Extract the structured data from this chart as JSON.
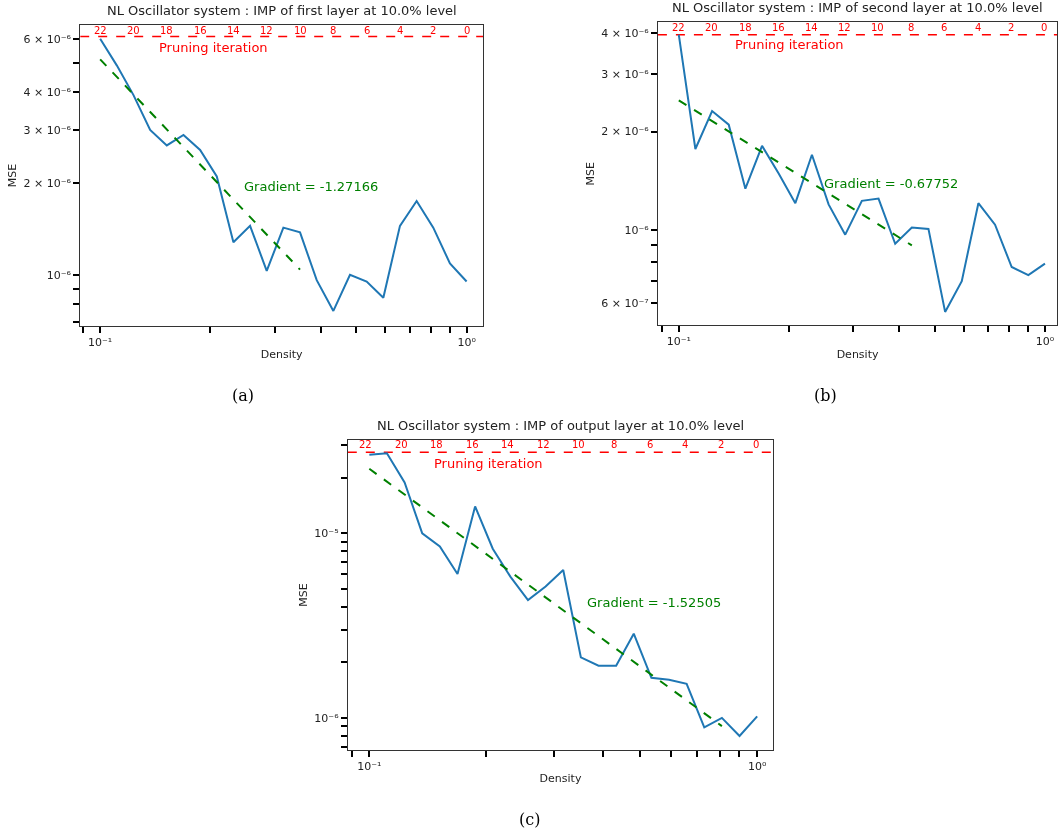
{
  "chart_data": [
    {
      "type": "line",
      "title": "NL Oscillator system : IMP of first layer at 10.0% level",
      "xlabel": "Density",
      "ylabel": "MSE",
      "x2label": "Pruning iteration",
      "log": "xy",
      "marker": "none",
      "x": [
        0.1,
        0.111,
        0.1233,
        0.1369,
        0.152,
        0.1688,
        0.1874,
        0.2081,
        0.231,
        0.2565,
        0.2848,
        0.3162,
        0.3511,
        0.3899,
        0.4329,
        0.4806,
        0.5337,
        0.5926,
        0.6579,
        0.7305,
        0.8111,
        0.9006,
        1.0
      ],
      "series": [
        {
          "color": "#1f77b4",
          "values": [
            6e-06,
            4.9e-06,
            3.91e-06,
            3e-06,
            2.67e-06,
            2.89e-06,
            2.58e-06,
            2.11e-06,
            1.28e-06,
            1.45e-06,
            1.03e-06,
            1.43e-06,
            1.38e-06,
            9.6e-07,
            7.6e-07,
            1e-06,
            9.5e-07,
            8.4e-07,
            1.45e-06,
            1.75e-06,
            1.43e-06,
            1.09e-06,
            9.5e-07
          ]
        },
        {
          "type": "line",
          "color": "#008000",
          "line_style": "dashed",
          "x": [
            0.1,
            0.3511
          ],
          "values": [
            5.13e-06,
            1.04e-06
          ]
        }
      ],
      "xlim": [
        0.0882,
        1.11
      ],
      "ylim": [
        6.78e-07,
        6.65e-06
      ],
      "xticks": [
        {
          "value": 0.09,
          "label": null
        },
        {
          "value": 0.1,
          "label": "10⁻¹"
        },
        {
          "value": 0.2,
          "label": null
        },
        {
          "value": 0.3,
          "label": null
        },
        {
          "value": 0.4,
          "label": null
        },
        {
          "value": 0.5,
          "label": null
        },
        {
          "value": 0.6,
          "label": null
        },
        {
          "value": 0.7,
          "label": null
        },
        {
          "value": 0.8,
          "label": null
        },
        {
          "value": 0.9,
          "label": null
        },
        {
          "value": 1,
          "label": "10⁰"
        }
      ],
      "yticks": [
        {
          "value": 7e-07,
          "label": null
        },
        {
          "value": 8e-07,
          "label": null
        },
        {
          "value": 9e-07,
          "label": null
        },
        {
          "value": 1e-06,
          "label": "10⁻⁶"
        },
        {
          "value": 2e-06,
          "label": "2 × 10⁻⁶"
        },
        {
          "value": 3e-06,
          "label": "3 × 10⁻⁶"
        },
        {
          "value": 4e-06,
          "label": "4 × 10⁻⁶"
        },
        {
          "value": 5e-06,
          "label": null
        },
        {
          "value": 6e-06,
          "label": "6 × 10⁻⁶"
        }
      ],
      "x2lim": [
        23.2,
        -1
      ],
      "x2ticks": [
        22,
        20,
        18,
        16,
        14,
        12,
        10,
        8,
        6,
        4,
        2,
        0
      ],
      "ref_lines": [
        {
          "axis": "y",
          "value": 6.1e-06,
          "color": "#ff0000",
          "line_style": "dashed"
        }
      ],
      "annotations": [
        "Gradient = -1.27166",
        "(a)"
      ]
    },
    {
      "type": "line",
      "title": "NL Oscillator system : IMP of second layer at 10.0% level",
      "xlabel": "Density",
      "ylabel": "MSE",
      "x2label": "Pruning iteration",
      "log": "xy",
      "marker": "none",
      "x": [
        0.1,
        0.111,
        0.1233,
        0.1369,
        0.152,
        0.1688,
        0.1874,
        0.2081,
        0.231,
        0.2565,
        0.2848,
        0.3162,
        0.3511,
        0.3899,
        0.4329,
        0.4806,
        0.5337,
        0.5926,
        0.6579,
        0.7305,
        0.8111,
        0.9006,
        1.0
      ],
      "series": [
        {
          "color": "#1f77b4",
          "values": [
            3.95e-06,
            1.77e-06,
            2.31e-06,
            2.1e-06,
            1.34e-06,
            1.81e-06,
            1.49e-06,
            1.21e-06,
            1.7e-06,
            1.2e-06,
            9.7e-07,
            1.23e-06,
            1.25e-06,
            9.1e-07,
            1.02e-06,
            1.01e-06,
            5.64e-07,
            7e-07,
            1.21e-06,
            1.04e-06,
            7.73e-07,
            7.3e-07,
            7.92e-07
          ]
        },
        {
          "type": "line",
          "color": "#008000",
          "line_style": "dashed",
          "x": [
            0.1,
            0.4329
          ],
          "values": [
            2.49e-06,
            9e-07
          ]
        }
      ],
      "xlim": [
        0.0877,
        1.08
      ],
      "ylim": [
        5.14e-07,
        4.31e-06
      ],
      "xticks": [
        {
          "value": 0.09,
          "label": null
        },
        {
          "value": 0.1,
          "label": "10⁻¹"
        },
        {
          "value": 0.2,
          "label": null
        },
        {
          "value": 0.3,
          "label": null
        },
        {
          "value": 0.4,
          "label": null
        },
        {
          "value": 0.5,
          "label": null
        },
        {
          "value": 0.6,
          "label": null
        },
        {
          "value": 0.7,
          "label": null
        },
        {
          "value": 0.8,
          "label": null
        },
        {
          "value": 0.9,
          "label": null
        },
        {
          "value": 1,
          "label": "10⁰"
        }
      ],
      "yticks": [
        {
          "value": 6e-07,
          "label": "6 × 10⁻⁷"
        },
        {
          "value": 7e-07,
          "label": null
        },
        {
          "value": 8e-07,
          "label": null
        },
        {
          "value": 9e-07,
          "label": null
        },
        {
          "value": 1e-06,
          "label": "10⁻⁶"
        },
        {
          "value": 2e-06,
          "label": "2 × 10⁻⁶"
        },
        {
          "value": 3e-06,
          "label": "3 × 10⁻⁶"
        },
        {
          "value": 4e-06,
          "label": "4 × 10⁻⁶"
        }
      ],
      "x2lim": [
        23.25,
        -0.8
      ],
      "x2ticks": [
        22,
        20,
        18,
        16,
        14,
        12,
        10,
        8,
        6,
        4,
        2,
        0
      ],
      "ref_lines": [
        {
          "axis": "y",
          "value": 3.95e-06,
          "color": "#ff0000",
          "line_style": "dashed"
        }
      ],
      "annotations": [
        "Gradient = -0.67752",
        "(b)"
      ]
    },
    {
      "type": "line",
      "title": "NL Oscillator system : IMP of output layer at 10.0% level",
      "xlabel": "Density",
      "ylabel": "MSE",
      "x2label": "Pruning iteration",
      "log": "xy",
      "marker": "none",
      "x": [
        0.1,
        0.111,
        0.1233,
        0.1369,
        0.152,
        0.1688,
        0.1874,
        0.2081,
        0.231,
        0.2565,
        0.2848,
        0.3162,
        0.3511,
        0.3899,
        0.4329,
        0.4806,
        0.5337,
        0.5926,
        0.6579,
        0.7305,
        0.8111,
        0.9006,
        1.0
      ],
      "series": [
        {
          "color": "#1f77b4",
          "values": [
            2.67e-05,
            2.72e-05,
            1.89e-05,
            1e-05,
            8.5e-06,
            6.03e-06,
            1.4e-05,
            8.26e-06,
            5.83e-06,
            4.35e-06,
            5.16e-06,
            6.33e-06,
            2.13e-06,
            1.92e-06,
            1.92e-06,
            2.86e-06,
            1.65e-06,
            1.61e-06,
            1.53e-06,
            8.9e-07,
            1e-06,
            7.98e-07,
            1.02e-06
          ]
        },
        {
          "type": "line",
          "color": "#008000",
          "line_style": "dashed",
          "x": [
            0.1,
            0.8111
          ],
          "values": [
            2.24e-05,
            9.03e-07
          ]
        }
      ],
      "xlim": [
        0.088,
        1.1
      ],
      "ylim": [
        6.7e-07,
        3.21e-05
      ],
      "xticks": [
        {
          "value": 0.09,
          "label": null
        },
        {
          "value": 0.1,
          "label": "10⁻¹"
        },
        {
          "value": 0.2,
          "label": null
        },
        {
          "value": 0.3,
          "label": null
        },
        {
          "value": 0.4,
          "label": null
        },
        {
          "value": 0.5,
          "label": null
        },
        {
          "value": 0.6,
          "label": null
        },
        {
          "value": 0.7,
          "label": null
        },
        {
          "value": 0.8,
          "label": null
        },
        {
          "value": 0.9,
          "label": null
        },
        {
          "value": 1,
          "label": "10⁰"
        }
      ],
      "yticks": [
        {
          "value": 7e-07,
          "label": null
        },
        {
          "value": 8e-07,
          "label": null
        },
        {
          "value": 9e-07,
          "label": null
        },
        {
          "value": 1e-06,
          "label": "10⁻⁶"
        },
        {
          "value": 2e-06,
          "label": null
        },
        {
          "value": 3e-06,
          "label": null
        },
        {
          "value": 4e-06,
          "label": null
        },
        {
          "value": 5e-06,
          "label": null
        },
        {
          "value": 6e-06,
          "label": null
        },
        {
          "value": 7e-06,
          "label": null
        },
        {
          "value": 8e-06,
          "label": null
        },
        {
          "value": 9e-06,
          "label": null
        },
        {
          "value": 1e-05,
          "label": "10⁻⁵"
        },
        {
          "value": 2e-05,
          "label": null
        },
        {
          "value": 3e-05,
          "label": null
        }
      ],
      "x2lim": [
        23,
        -0.95
      ],
      "x2ticks": [
        22,
        20,
        18,
        16,
        14,
        12,
        10,
        8,
        6,
        4,
        2,
        0
      ],
      "ref_lines": [
        {
          "axis": "y",
          "value": 2.75e-05,
          "color": "#ff0000",
          "line_style": "dashed"
        }
      ],
      "annotations": [
        "Gradient = -1.52505",
        "(c)"
      ]
    }
  ]
}
